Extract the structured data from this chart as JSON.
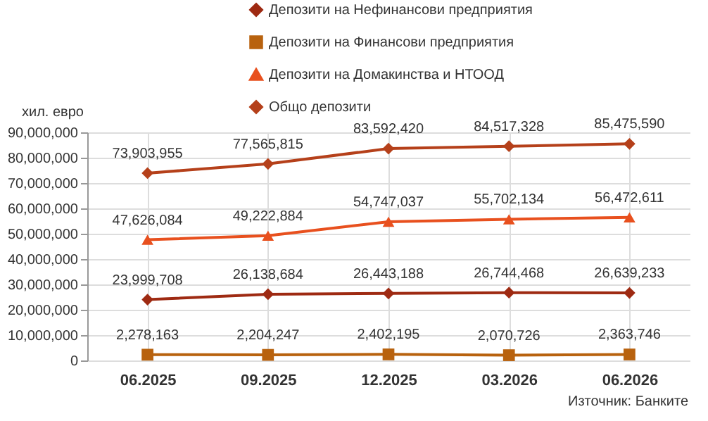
{
  "chart_data": {
    "type": "line",
    "ylabel": "хил. евро",
    "categories": [
      "06.2025",
      "09.2025",
      "12.2025",
      "03.2026",
      "06.2026"
    ],
    "series": [
      {
        "name": "Депозити на Нефинансови предприятия",
        "color": "#9e2a12",
        "marker": "diamond",
        "values": [
          23999708,
          26138684,
          26443188,
          26744468,
          26639233
        ],
        "value_labels": [
          "23,999,708",
          "26,138,684",
          "26,443,188",
          "26,744,468",
          "26,639,233"
        ]
      },
      {
        "name": "Депозити на Финансови предприятия",
        "color": "#b8620e",
        "marker": "square",
        "values": [
          2278163,
          2204247,
          2402195,
          2070726,
          2363746
        ],
        "value_labels": [
          "2,278,163",
          "2,204,247",
          "2,402,195",
          "2,070,726",
          "2,363,746"
        ]
      },
      {
        "name": "Депозити на Домакинства и НТООД",
        "color": "#e8501e",
        "marker": "triangle",
        "values": [
          47626084,
          49222884,
          54747037,
          55702134,
          56472611
        ],
        "value_labels": [
          "47,626,084",
          "49,222,884",
          "54,747,037",
          "55,702,134",
          "56,472,611"
        ]
      },
      {
        "name": "Общо депозити",
        "color": "#b5401a",
        "marker": "diamond",
        "values": [
          73903955,
          77565815,
          83592420,
          84517328,
          85475590
        ],
        "value_labels": [
          "73,903,955",
          "77,565,815",
          "83,592,420",
          "84,517,328",
          "85,475,590"
        ]
      }
    ],
    "ylim": [
      0,
      90000000
    ],
    "yticks": [
      {
        "value": 0,
        "label": "0"
      },
      {
        "value": 10000000,
        "label": "10,000,000"
      },
      {
        "value": 20000000,
        "label": "20,000,000"
      },
      {
        "value": 30000000,
        "label": "30,000,000"
      },
      {
        "value": 40000000,
        "label": "40,000,000"
      },
      {
        "value": 50000000,
        "label": "50,000,000"
      },
      {
        "value": 60000000,
        "label": "60,000,000"
      },
      {
        "value": 70000000,
        "label": "70,000,000"
      },
      {
        "value": 80000000,
        "label": "80,000,000"
      },
      {
        "value": 90000000,
        "label": "90,000,000"
      }
    ],
    "grid": true,
    "legend": "top",
    "annotations": [
      "Източник: Банките"
    ]
  }
}
